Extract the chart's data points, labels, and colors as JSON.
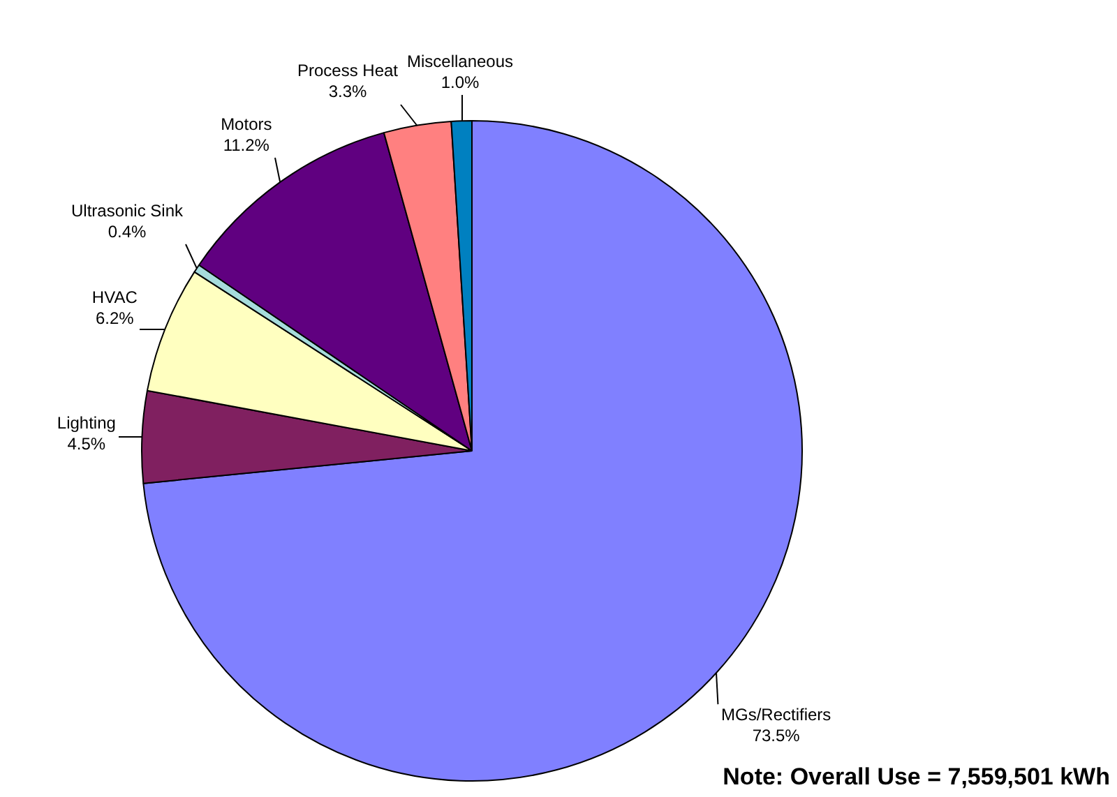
{
  "chart_data": {
    "type": "pie",
    "categories": [
      "MGs/Rectifiers",
      "Lighting",
      "HVAC",
      "Ultrasonic Sink",
      "Motors",
      "Process Heat",
      "Miscellaneous"
    ],
    "values": [
      73.5,
      4.5,
      6.2,
      0.4,
      11.2,
      3.3,
      1.0
    ],
    "value_labels": [
      "73.5%",
      "4.5%",
      "6.2%",
      "0.4%",
      "11.2%",
      "3.3%",
      "1.0%"
    ],
    "colors": [
      "#8080ff",
      "#802060",
      "#ffffc0",
      "#a6dcdc",
      "#600080",
      "#ff8080",
      "#0080c0"
    ],
    "legend": false,
    "annotations": [
      "Note: Overall Use = 7,559,501 kWh"
    ]
  }
}
